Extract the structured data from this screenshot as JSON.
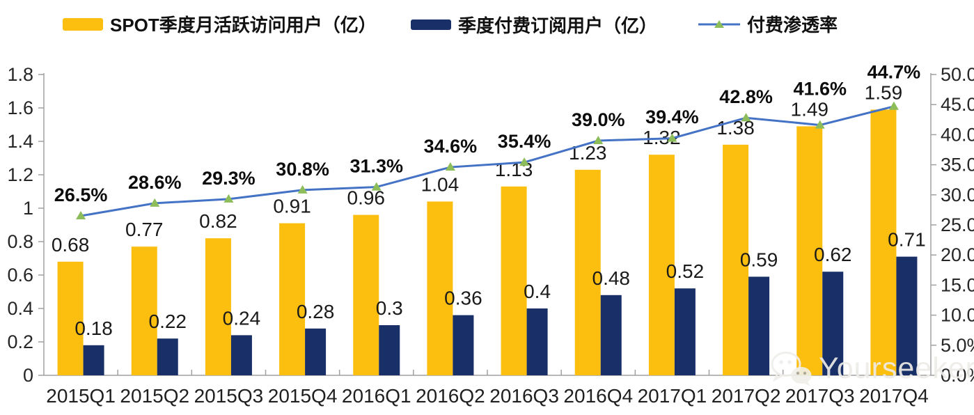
{
  "legend": {
    "mau_label": "SPOT季度月活跃访问用户（亿）",
    "subs_label": "季度付费订阅用户（亿）",
    "penetration_label": "付费渗透率"
  },
  "watermark": {
    "text": "Yourseeker"
  },
  "colors": {
    "bar_mau": "#FCBF10",
    "bar_subs": "#182F68",
    "line": "#4472C4",
    "marker": "#8CBD5A",
    "axis": "#A0A0A0",
    "text": "#262626"
  },
  "chart_data": {
    "type": "combo_bar_line",
    "title": "",
    "categories": [
      "2015Q1",
      "2015Q2",
      "2015Q3",
      "2015Q4",
      "2016Q1",
      "2016Q2",
      "2016Q3",
      "2016Q4",
      "2017Q1",
      "2017Q2",
      "2017Q3",
      "2017Q4"
    ],
    "series": [
      {
        "name": "SPOT季度月活跃访问用户（亿）",
        "type": "bar",
        "axis": "left",
        "values": [
          0.68,
          0.77,
          0.82,
          0.91,
          0.96,
          1.04,
          1.13,
          1.23,
          1.32,
          1.38,
          1.49,
          1.59
        ],
        "labels": [
          "0.68",
          "0.77",
          "0.82",
          "0.91",
          "0.96",
          "1.04",
          "1.13",
          "1.23",
          "1.32",
          "1.38",
          "1.49",
          "1.59"
        ]
      },
      {
        "name": "季度付费订阅用户（亿）",
        "type": "bar",
        "axis": "left",
        "values": [
          0.18,
          0.22,
          0.24,
          0.28,
          0.3,
          0.36,
          0.4,
          0.48,
          0.52,
          0.59,
          0.62,
          0.71
        ],
        "labels": [
          "0.18",
          "0.22",
          "0.24",
          "0.28",
          "0.3",
          "0.36",
          "0.4",
          "0.48",
          "0.52",
          "0.59",
          "0.62",
          "0.71"
        ]
      },
      {
        "name": "付费渗透率",
        "type": "line",
        "axis": "right",
        "values": [
          26.5,
          28.6,
          29.3,
          30.8,
          31.3,
          34.6,
          35.4,
          39.0,
          39.4,
          42.8,
          41.6,
          44.7
        ],
        "labels": [
          "26.5%",
          "28.6%",
          "29.3%",
          "30.8%",
          "31.3%",
          "34.6%",
          "35.4%",
          "39.0%",
          "39.4%",
          "42.8%",
          "41.6%",
          "44.7%"
        ]
      }
    ],
    "left_axis": {
      "min": 0,
      "max": 1.8,
      "step": 0.2,
      "ticks": [
        "0",
        "0.2",
        "0.4",
        "0.6",
        "0.8",
        "1",
        "1.2",
        "1.4",
        "1.6",
        "1.8"
      ]
    },
    "right_axis": {
      "min": 0,
      "max": 50,
      "step": 5,
      "ticks": [
        "0.0%",
        "5.0%",
        "10.0%",
        "15.0%",
        "20.0%",
        "25.0%",
        "30.0%",
        "35.0%",
        "40.0%",
        "45.0%",
        "50.0%"
      ]
    },
    "grid": false,
    "legend_position": "top"
  }
}
